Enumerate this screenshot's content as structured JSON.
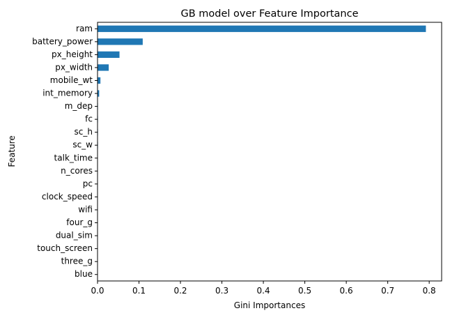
{
  "chart_data": {
    "type": "bar",
    "orientation": "horizontal",
    "title": "GB model over Feature Importance",
    "xlabel": "Gini Importances",
    "ylabel": "Feature",
    "xlim": [
      0,
      0.83
    ],
    "xticks": [
      "0.0",
      "0.1",
      "0.2",
      "0.3",
      "0.4",
      "0.5",
      "0.6",
      "0.7",
      "0.8"
    ],
    "grid": false,
    "legend": "none",
    "bar_color": "#1f77b4",
    "categories": [
      "ram",
      "battery_power",
      "px_height",
      "px_width",
      "mobile_wt",
      "int_memory",
      "m_dep",
      "fc",
      "sc_h",
      "sc_w",
      "talk_time",
      "n_cores",
      "pc",
      "clock_speed",
      "wifi",
      "four_g",
      "dual_sim",
      "touch_screen",
      "three_g",
      "blue"
    ],
    "values": [
      0.792,
      0.109,
      0.053,
      0.027,
      0.007,
      0.004,
      0.001,
      0.001,
      0.001,
      0.001,
      0.0008,
      0.0007,
      0.0006,
      0.0005,
      0.0003,
      0.0002,
      0.0002,
      0.0001,
      0.0001,
      0.0001
    ]
  }
}
